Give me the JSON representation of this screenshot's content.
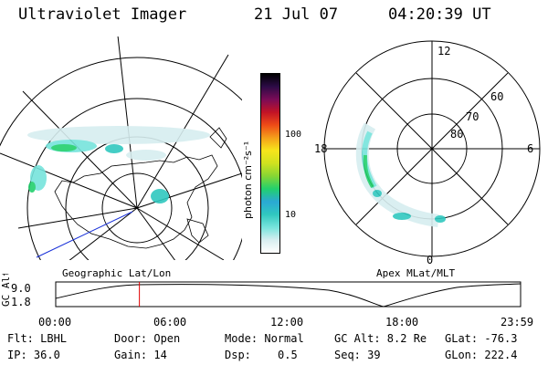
{
  "header": {
    "title": "Ultraviolet Imager",
    "date": "21 Jul 07",
    "time": "04:20:39 UT"
  },
  "colorbar": {
    "unit_label": "photon cm⁻²s⁻¹",
    "ticks": [
      "100",
      "10"
    ],
    "stops": [
      "#ffffff",
      "#d7eef0",
      "#76e4dc",
      "#30c8bf",
      "#2aa9d5",
      "#22d06d",
      "#86d634",
      "#d0e21f",
      "#f6e51b",
      "#f59f1a",
      "#ee4b17",
      "#c21326",
      "#7a0b57",
      "#2d0b46",
      "#000000"
    ]
  },
  "left_map": {
    "caption": "Geographic Lat/Lon"
  },
  "right_map": {
    "caption": "Apex MLat/MLT",
    "mlt_labels": {
      "top": "12",
      "left": "18",
      "right": "6",
      "bottom": "0"
    },
    "lat_labels": [
      "60",
      "70",
      "80"
    ]
  },
  "timeline": {
    "ylabel": "GC Alt",
    "yticks": [
      "9.0",
      "1.8"
    ],
    "xticks": [
      "00:00",
      "06:00",
      "12:00",
      "18:00",
      "23:59"
    ],
    "marker_fraction": 0.18
  },
  "info": {
    "flt": "Flt: LBHL",
    "ip": "IP: 36.0",
    "door": "Door: Open",
    "gain": "Gain: 14",
    "mode": "Mode: Normal",
    "dsp_label": "Dsp:",
    "dsp_value": "0.5",
    "gc_alt": "GC Alt: 8.2 Re",
    "seq": "Seq: 39",
    "glat": "GLat: -76.3",
    "glon": "GLon: 222.4"
  }
}
